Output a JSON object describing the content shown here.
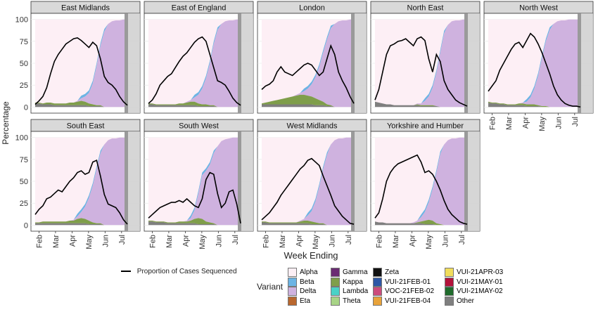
{
  "chart_data": {
    "type": "area",
    "ylabel": "Percentage",
    "xlabel": "Week Ending",
    "yticks": [
      0,
      25,
      50,
      75,
      100
    ],
    "x_tick_labels": [
      "Feb",
      "Mar",
      "Apr",
      "May",
      "Jun",
      "Jul"
    ],
    "legend_line_label": "Proportion of Cases Sequenced",
    "legend_title": "Variant",
    "variants": [
      {
        "name": "Alpha",
        "color": "#fdeff5"
      },
      {
        "name": "Beta",
        "color": "#6cb4e4"
      },
      {
        "name": "Delta",
        "color": "#cfb2df"
      },
      {
        "name": "Eta",
        "color": "#b9672e"
      },
      {
        "name": "Gamma",
        "color": "#6b2c73"
      },
      {
        "name": "Kappa",
        "color": "#7f9e4a"
      },
      {
        "name": "Lambda",
        "color": "#49d2c7"
      },
      {
        "name": "Theta",
        "color": "#a8d486"
      },
      {
        "name": "Zeta",
        "color": "#111111"
      },
      {
        "name": "VUI-21FEB-01",
        "color": "#2d57a6"
      },
      {
        "name": "VOC-21FEB-02",
        "color": "#cc4b7c"
      },
      {
        "name": "VUI-21FEB-04",
        "color": "#e8a33a"
      },
      {
        "name": "VUI-21APR-03",
        "color": "#f1dd5c"
      },
      {
        "name": "VUI-21MAY-01",
        "color": "#b3123a"
      },
      {
        "name": "VUI-21MAY-02",
        "color": "#1f6b2c"
      },
      {
        "name": "Other",
        "color": "#7f7f7f"
      }
    ],
    "x_weeks": [
      0,
      1,
      2,
      3,
      4,
      5,
      6,
      7,
      8,
      9,
      10,
      11,
      12,
      13,
      14,
      15,
      16,
      17,
      18,
      19,
      20,
      21,
      22,
      23,
      24
    ],
    "panels": [
      {
        "name": "East Midlands",
        "delta": [
          0,
          0,
          0,
          0,
          0,
          0,
          0,
          0,
          0,
          0,
          0,
          1,
          3,
          6,
          12,
          24,
          45,
          68,
          86,
          95,
          98,
          99,
          99,
          100,
          100
        ],
        "other": [
          4,
          4,
          3,
          3,
          3,
          2,
          2,
          2,
          2,
          2,
          2,
          2,
          2,
          2,
          1,
          1,
          1,
          1,
          0,
          0,
          0,
          0,
          0,
          0,
          0
        ],
        "minor": [
          1,
          1,
          1,
          2,
          2,
          2,
          2,
          2,
          2,
          3,
          3,
          4,
          5,
          4,
          3,
          2,
          1,
          1,
          0,
          0,
          0,
          0,
          0,
          0,
          0
        ],
        "seq": [
          3,
          7,
          12,
          22,
          38,
          52,
          60,
          66,
          72,
          75,
          78,
          79,
          76,
          72,
          68,
          74,
          70,
          55,
          35,
          28,
          25,
          20,
          12,
          6,
          2
        ]
      },
      {
        "name": "East of England",
        "delta": [
          0,
          0,
          0,
          0,
          0,
          0,
          0,
          0,
          0,
          0,
          1,
          2,
          5,
          10,
          18,
          30,
          48,
          70,
          88,
          95,
          98,
          99,
          99,
          100,
          100
        ],
        "other": [
          3,
          3,
          2,
          2,
          2,
          2,
          2,
          2,
          2,
          2,
          2,
          2,
          2,
          1,
          1,
          1,
          1,
          1,
          0,
          0,
          0,
          0,
          0,
          0,
          0
        ],
        "minor": [
          1,
          1,
          1,
          1,
          1,
          1,
          1,
          1,
          2,
          2,
          3,
          4,
          4,
          3,
          2,
          2,
          1,
          1,
          0,
          0,
          0,
          0,
          0,
          0,
          0
        ],
        "seq": [
          4,
          8,
          15,
          25,
          30,
          35,
          38,
          45,
          52,
          58,
          62,
          68,
          74,
          78,
          80,
          75,
          60,
          45,
          30,
          28,
          25,
          18,
          10,
          5,
          2
        ]
      },
      {
        "name": "London",
        "delta": [
          0,
          0,
          0,
          0,
          0,
          0,
          0,
          0,
          0,
          1,
          2,
          4,
          8,
          14,
          24,
          38,
          56,
          74,
          88,
          95,
          98,
          99,
          99,
          100,
          100
        ],
        "other": [
          3,
          3,
          3,
          3,
          3,
          3,
          3,
          3,
          3,
          3,
          3,
          3,
          3,
          3,
          2,
          2,
          2,
          1,
          1,
          0,
          0,
          0,
          0,
          0,
          0
        ],
        "minor": [
          1,
          2,
          3,
          4,
          5,
          6,
          7,
          8,
          9,
          10,
          11,
          11,
          10,
          9,
          8,
          6,
          4,
          2,
          1,
          0,
          0,
          0,
          0,
          0,
          0
        ],
        "seq": [
          20,
          24,
          26,
          30,
          40,
          46,
          40,
          38,
          36,
          40,
          44,
          48,
          50,
          48,
          42,
          36,
          40,
          55,
          70,
          60,
          40,
          30,
          22,
          12,
          4
        ]
      },
      {
        "name": "North East",
        "delta": [
          0,
          0,
          0,
          0,
          0,
          0,
          0,
          0,
          0,
          0,
          0,
          1,
          2,
          5,
          10,
          20,
          38,
          62,
          84,
          94,
          98,
          99,
          99,
          100,
          100
        ],
        "other": [
          6,
          5,
          4,
          3,
          3,
          2,
          2,
          2,
          2,
          2,
          2,
          2,
          1,
          1,
          1,
          1,
          1,
          0,
          0,
          0,
          0,
          0,
          0,
          0,
          0
        ],
        "minor": [
          0,
          0,
          0,
          0,
          0,
          0,
          0,
          0,
          0,
          0,
          0,
          1,
          1,
          1,
          1,
          1,
          0,
          0,
          0,
          0,
          0,
          0,
          0,
          0,
          0
        ],
        "seq": [
          8,
          20,
          40,
          60,
          70,
          72,
          75,
          76,
          78,
          74,
          70,
          78,
          80,
          76,
          55,
          40,
          60,
          52,
          30,
          20,
          14,
          8,
          5,
          3,
          1
        ]
      },
      {
        "name": "North West",
        "delta": [
          0,
          0,
          0,
          0,
          0,
          0,
          0,
          0,
          0,
          1,
          3,
          8,
          18,
          34,
          55,
          74,
          88,
          95,
          98,
          99,
          99,
          100,
          100,
          100,
          100
        ],
        "other": [
          5,
          4,
          4,
          3,
          3,
          2,
          2,
          2,
          2,
          2,
          1,
          1,
          1,
          1,
          0,
          0,
          0,
          0,
          0,
          0,
          0,
          0,
          0,
          0,
          0
        ],
        "minor": [
          1,
          1,
          1,
          1,
          1,
          1,
          1,
          1,
          2,
          2,
          2,
          2,
          2,
          1,
          1,
          1,
          0,
          0,
          0,
          0,
          0,
          0,
          0,
          0,
          0
        ],
        "seq": [
          18,
          24,
          30,
          42,
          50,
          58,
          66,
          72,
          74,
          68,
          76,
          84,
          80,
          72,
          62,
          50,
          38,
          24,
          14,
          8,
          4,
          2,
          1,
          1,
          0
        ]
      },
      {
        "name": "South East",
        "delta": [
          0,
          0,
          0,
          0,
          0,
          0,
          0,
          0,
          0,
          0,
          1,
          3,
          7,
          14,
          26,
          42,
          62,
          80,
          92,
          97,
          99,
          99,
          100,
          100,
          100
        ],
        "other": [
          2,
          2,
          2,
          2,
          2,
          2,
          2,
          2,
          2,
          2,
          2,
          2,
          2,
          2,
          1,
          1,
          1,
          1,
          0,
          0,
          0,
          0,
          0,
          0,
          0
        ],
        "minor": [
          1,
          1,
          2,
          2,
          2,
          2,
          2,
          2,
          2,
          3,
          3,
          5,
          6,
          5,
          4,
          2,
          1,
          1,
          0,
          0,
          0,
          0,
          0,
          0,
          0
        ],
        "seq": [
          12,
          18,
          22,
          30,
          32,
          36,
          40,
          38,
          44,
          50,
          54,
          60,
          62,
          58,
          60,
          72,
          74,
          56,
          35,
          24,
          22,
          20,
          14,
          6,
          1
        ]
      },
      {
        "name": "South West",
        "delta": [
          0,
          0,
          0,
          0,
          0,
          0,
          0,
          0,
          0,
          0,
          1,
          3,
          10,
          28,
          50,
          58,
          66,
          80,
          90,
          96,
          98,
          99,
          100,
          100,
          100
        ],
        "other": [
          4,
          4,
          3,
          3,
          3,
          2,
          2,
          2,
          2,
          2,
          2,
          2,
          2,
          1,
          1,
          1,
          1,
          1,
          0,
          0,
          0,
          0,
          0,
          0,
          0
        ],
        "minor": [
          1,
          1,
          1,
          1,
          1,
          1,
          1,
          1,
          2,
          2,
          2,
          3,
          5,
          7,
          6,
          3,
          2,
          1,
          0,
          0,
          0,
          0,
          0,
          0,
          0
        ],
        "seq": [
          8,
          12,
          16,
          20,
          22,
          24,
          26,
          26,
          28,
          26,
          30,
          26,
          22,
          20,
          30,
          52,
          60,
          58,
          36,
          20,
          25,
          38,
          40,
          24,
          2
        ]
      },
      {
        "name": "West Midlands",
        "delta": [
          0,
          0,
          0,
          0,
          0,
          0,
          0,
          0,
          0,
          0,
          1,
          2,
          6,
          12,
          24,
          42,
          62,
          80,
          92,
          97,
          99,
          99,
          100,
          100,
          100
        ],
        "other": [
          3,
          3,
          2,
          2,
          2,
          2,
          2,
          2,
          2,
          2,
          2,
          2,
          2,
          1,
          1,
          1,
          1,
          0,
          0,
          0,
          0,
          0,
          0,
          0,
          0
        ],
        "minor": [
          1,
          1,
          1,
          1,
          1,
          1,
          1,
          1,
          1,
          1,
          2,
          3,
          3,
          3,
          2,
          1,
          1,
          0,
          0,
          0,
          0,
          0,
          0,
          0,
          0
        ],
        "seq": [
          6,
          10,
          14,
          20,
          26,
          34,
          40,
          46,
          52,
          58,
          64,
          68,
          74,
          76,
          72,
          68,
          56,
          45,
          34,
          22,
          16,
          10,
          6,
          2,
          1
        ]
      },
      {
        "name": "Yorkshire and Humber",
        "delta": [
          0,
          0,
          0,
          0,
          0,
          0,
          0,
          0,
          0,
          0,
          1,
          2,
          5,
          10,
          20,
          36,
          58,
          80,
          92,
          97,
          99,
          99,
          100,
          100,
          100
        ],
        "other": [
          4,
          3,
          3,
          2,
          2,
          2,
          2,
          2,
          2,
          2,
          2,
          2,
          2,
          1,
          1,
          1,
          0,
          0,
          0,
          0,
          0,
          0,
          0,
          0,
          0
        ],
        "minor": [
          0,
          0,
          0,
          0,
          0,
          0,
          0,
          0,
          0,
          0,
          0,
          1,
          2,
          4,
          5,
          4,
          2,
          1,
          0,
          0,
          0,
          0,
          0,
          0,
          0
        ],
        "seq": [
          8,
          14,
          30,
          50,
          60,
          66,
          70,
          72,
          74,
          76,
          78,
          80,
          72,
          60,
          62,
          58,
          50,
          40,
          28,
          18,
          12,
          8,
          4,
          2,
          1
        ]
      }
    ]
  }
}
